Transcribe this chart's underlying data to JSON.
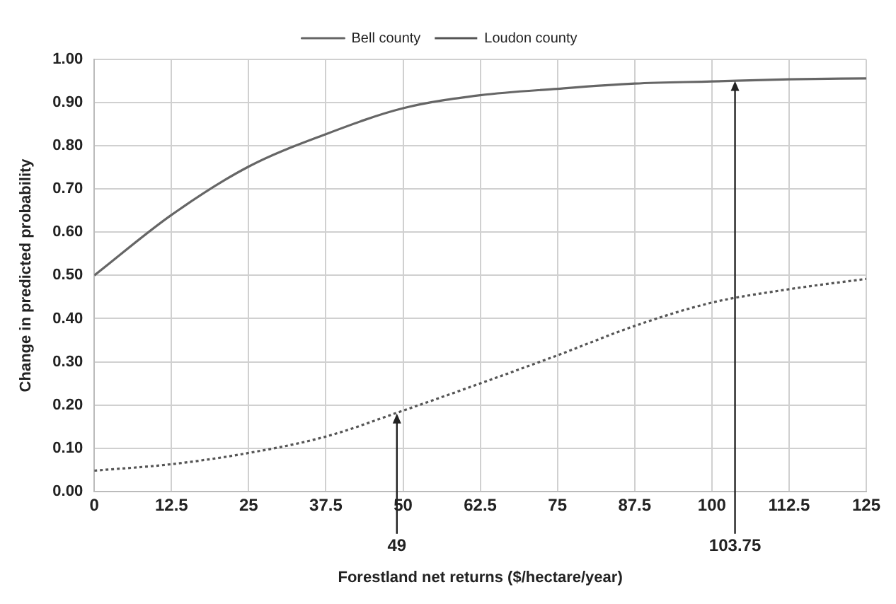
{
  "chart_data": {
    "type": "line",
    "xlabel": "Forestland net returns ($/hectare/year)",
    "ylabel": "Change in predicted probability",
    "x": [
      0,
      12.5,
      25,
      37.5,
      50,
      62.5,
      75,
      87.5,
      100,
      112.5,
      125
    ],
    "series": [
      {
        "name": "Bell county",
        "color": "#666666",
        "line_style": "solid",
        "values": [
          0.5,
          0.64,
          0.752,
          0.827,
          0.887,
          0.917,
          0.932,
          0.944,
          0.949,
          0.954,
          0.956
        ]
      },
      {
        "name": "Loudon county",
        "color": "#555555",
        "line_style": "dotted",
        "values": [
          0.048,
          0.063,
          0.089,
          0.127,
          0.187,
          0.25,
          0.315,
          0.383,
          0.437,
          0.468,
          0.492
        ]
      }
    ],
    "xlim": [
      0,
      125
    ],
    "xticks": [
      0,
      12.5,
      25,
      37.5,
      50,
      62.5,
      75,
      87.5,
      100,
      112.5,
      125
    ],
    "ylim": [
      0,
      1
    ],
    "yticks": [
      {
        "value": 0,
        "label": "0.00"
      },
      {
        "value": 0.1,
        "label": "0.10"
      },
      {
        "value": 0.2,
        "label": "0.20"
      },
      {
        "value": 0.3,
        "label": "0.30"
      },
      {
        "value": 0.4,
        "label": "0.40"
      },
      {
        "value": 0.5,
        "label": "0.50"
      },
      {
        "value": 0.6,
        "label": "0.60"
      },
      {
        "value": 0.7,
        "label": "0.70"
      },
      {
        "value": 0.8,
        "label": "0.80"
      },
      {
        "value": 0.9,
        "label": "0.90"
      },
      {
        "value": 1,
        "label": "1.00"
      }
    ],
    "grid": true,
    "legend": "top",
    "marker": "none",
    "annotations": [
      {
        "text": "49",
        "x": 49,
        "y": 0.18
      },
      {
        "text": "103.75",
        "x": 103.75,
        "y": 0.95
      }
    ]
  }
}
